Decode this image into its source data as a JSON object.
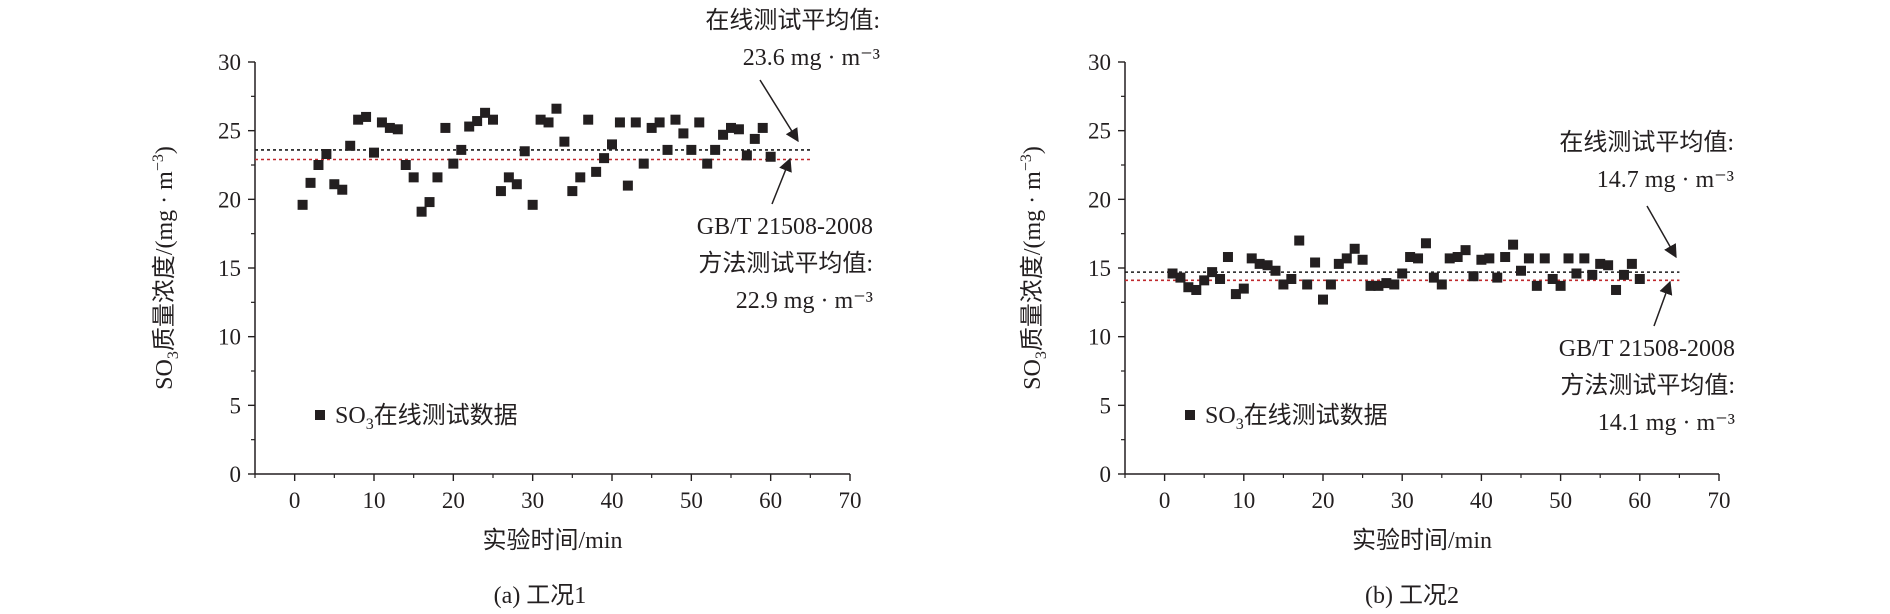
{
  "chart_data": [
    {
      "type": "scatter",
      "caption": "(a) 工况1",
      "xlabel": "实验时间/min",
      "ylabel": {
        "pre": "SO",
        "sub": "3",
        "main": "质量浓度/(mg · m",
        "sup": "−3",
        "post": ")"
      },
      "xlim": [
        -5,
        70
      ],
      "ylim": [
        0,
        30
      ],
      "xticks": [
        0,
        10,
        20,
        30,
        40,
        50,
        60,
        70
      ],
      "yticks": [
        0,
        5,
        10,
        15,
        20,
        25,
        30
      ],
      "legend": {
        "pre": "SO",
        "sub": "3",
        "post": "在线测试数据",
        "placement": "lower-left"
      },
      "series": [
        {
          "name": "SO3在线测试数据",
          "x": [
            1,
            2,
            3,
            4,
            5,
            6,
            7,
            8,
            9,
            10,
            11,
            12,
            13,
            14,
            15,
            16,
            17,
            18,
            19,
            20,
            21,
            22,
            23,
            24,
            25,
            26,
            27,
            28,
            29,
            30,
            31,
            32,
            33,
            34,
            35,
            36,
            37,
            38,
            39,
            40,
            41,
            42,
            43,
            44,
            45,
            46,
            47,
            48,
            49,
            50,
            51,
            52,
            53,
            54,
            55,
            56,
            57,
            58,
            59,
            60
          ],
          "y": [
            19.6,
            21.2,
            22.5,
            23.3,
            21.1,
            20.7,
            23.9,
            25.8,
            26.0,
            23.4,
            25.6,
            25.2,
            25.1,
            22.5,
            21.6,
            19.1,
            19.8,
            21.6,
            25.2,
            22.6,
            23.6,
            25.3,
            25.7,
            26.3,
            25.8,
            20.6,
            21.6,
            21.1,
            23.5,
            19.6,
            25.8,
            25.6,
            26.6,
            24.2,
            20.6,
            21.6,
            25.8,
            22.0,
            23.0,
            24.0,
            25.6,
            21.0,
            25.6,
            22.6,
            25.2,
            25.6,
            23.6,
            25.8,
            24.8,
            23.6,
            25.6,
            22.6,
            23.6,
            24.7,
            25.2,
            25.1,
            23.2,
            24.4,
            25.2,
            23.1
          ]
        }
      ],
      "lines": [
        {
          "y": 23.6,
          "color": "#1a1a1a",
          "style": "dotted"
        },
        {
          "y": 22.9,
          "color": "#c0282d",
          "style": "dotted"
        }
      ],
      "annotations": [
        {
          "lines": [
            "在线测试平均值:",
            "23.6 mg · m⁻³"
          ]
        },
        {
          "lines": [
            "GB/T 21508-2008",
            "方法测试平均值:",
            "22.9 mg · m⁻³"
          ]
        }
      ]
    },
    {
      "type": "scatter",
      "caption": "(b) 工况2",
      "xlabel": "实验时间/min",
      "ylabel": {
        "pre": "SO",
        "sub": "3",
        "main": "质量浓度/(mg · m",
        "sup": "−3",
        "post": ")"
      },
      "xlim": [
        -5,
        70
      ],
      "ylim": [
        0,
        30
      ],
      "xticks": [
        0,
        10,
        20,
        30,
        40,
        50,
        60,
        70
      ],
      "yticks": [
        0,
        5,
        10,
        15,
        20,
        25,
        30
      ],
      "legend": {
        "pre": "SO",
        "sub": "3",
        "post": "在线测试数据",
        "placement": "lower-left"
      },
      "series": [
        {
          "name": "SO3在线测试数据",
          "x": [
            1,
            2,
            3,
            4,
            5,
            6,
            7,
            8,
            9,
            10,
            11,
            12,
            13,
            14,
            15,
            16,
            17,
            18,
            19,
            20,
            21,
            22,
            23,
            24,
            25,
            26,
            27,
            28,
            29,
            30,
            31,
            32,
            33,
            34,
            35,
            36,
            37,
            38,
            39,
            40,
            41,
            42,
            43,
            44,
            45,
            46,
            47,
            48,
            49,
            50,
            51,
            52,
            53,
            54,
            55,
            56,
            57,
            58,
            59,
            60
          ],
          "y": [
            14.6,
            14.3,
            13.6,
            13.4,
            14.1,
            14.7,
            14.2,
            15.8,
            13.1,
            13.5,
            15.7,
            15.3,
            15.2,
            14.8,
            13.8,
            14.2,
            17.0,
            13.8,
            15.4,
            12.7,
            13.8,
            15.3,
            15.7,
            16.4,
            15.6,
            13.7,
            13.7,
            13.9,
            13.8,
            14.6,
            15.8,
            15.7,
            16.8,
            14.3,
            13.8,
            15.7,
            15.8,
            16.3,
            14.4,
            15.6,
            15.7,
            14.3,
            15.8,
            16.7,
            14.8,
            15.7,
            13.7,
            15.7,
            14.2,
            13.7,
            15.7,
            14.6,
            15.7,
            14.5,
            15.3,
            15.2,
            13.4,
            14.5,
            15.3,
            14.2
          ]
        }
      ],
      "lines": [
        {
          "y": 14.7,
          "color": "#1a1a1a",
          "style": "dotted"
        },
        {
          "y": 14.1,
          "color": "#c0282d",
          "style": "dotted"
        }
      ],
      "annotations": [
        {
          "lines": [
            "在线测试平均值:",
            "14.7 mg · m⁻³"
          ]
        },
        {
          "lines": [
            "GB/T 21508-2008",
            "方法测试平均值:",
            "14.1 mg · m⁻³"
          ]
        }
      ]
    }
  ]
}
